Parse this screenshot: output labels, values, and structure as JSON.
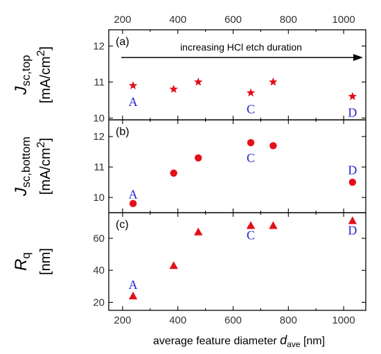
{
  "chart_data": {
    "type": "scatter",
    "x_axis": {
      "label_prefix": "average feature diameter ",
      "label_symbol": "d",
      "label_subscript": "ave",
      "label_unit": " [nm]",
      "range": [
        150,
        1080
      ],
      "ticks": [
        200,
        400,
        600,
        800,
        1000
      ],
      "tick_labels": [
        "200",
        "400",
        "600",
        "800",
        "1000"
      ],
      "top_axis_labels": true
    },
    "grid": false,
    "colors": {
      "marker": "#e3101a",
      "point_label": "#2222cc",
      "axis": "#000000"
    },
    "panels": [
      {
        "panel_label": "(a)",
        "annotation": "increasing HCl etch duration",
        "marker": "star",
        "ylabel_line1_symbol": "J",
        "ylabel_line1_sub": "sc,top",
        "ylabel_line2": "[mA/cm",
        "ylabel_line2_sup": "2",
        "ylabel_line2_end": "]",
        "ylim": [
          9.95,
          12.45
        ],
        "yticks": [
          10,
          11,
          12
        ],
        "ytick_labels": [
          "10",
          "11",
          "12"
        ],
        "points": [
          {
            "x": 238,
            "y": 10.9
          },
          {
            "x": 385,
            "y": 10.8
          },
          {
            "x": 474,
            "y": 11.0
          },
          {
            "x": 664,
            "y": 10.7
          },
          {
            "x": 745,
            "y": 11.0
          },
          {
            "x": 1032,
            "y": 10.6
          }
        ],
        "point_labels": [
          {
            "text": "A",
            "x": 238,
            "y": 10.45
          },
          {
            "text": "C",
            "x": 664,
            "y": 10.25
          },
          {
            "text": "D",
            "x": 1032,
            "y": 10.15
          }
        ]
      },
      {
        "panel_label": "(b)",
        "marker": "circle",
        "ylabel_line1_symbol": "J",
        "ylabel_line1_sub": "sc,bottom",
        "ylabel_line2": "[mA/cm",
        "ylabel_line2_sup": "2",
        "ylabel_line2_end": "]",
        "ylim": [
          9.5,
          12.55
        ],
        "yticks": [
          10,
          11,
          12
        ],
        "ytick_labels": [
          "10",
          "11",
          "12"
        ],
        "points": [
          {
            "x": 238,
            "y": 9.8
          },
          {
            "x": 385,
            "y": 10.8
          },
          {
            "x": 474,
            "y": 11.3
          },
          {
            "x": 664,
            "y": 11.8
          },
          {
            "x": 745,
            "y": 11.7
          },
          {
            "x": 1032,
            "y": 10.5
          }
        ],
        "point_labels": [
          {
            "text": "A",
            "x": 238,
            "y": 10.1
          },
          {
            "text": "C",
            "x": 664,
            "y": 11.3
          },
          {
            "text": "D",
            "x": 1032,
            "y": 10.9
          }
        ]
      },
      {
        "panel_label": "(c)",
        "marker": "triangle",
        "ylabel_line1_symbol": "R",
        "ylabel_line1_sub": "q",
        "ylabel_line2": "[nm]",
        "ylabel_line2_sup": "",
        "ylabel_line2_end": "",
        "ylim": [
          15,
          76
        ],
        "yticks": [
          20,
          40,
          60
        ],
        "ytick_labels": [
          "20",
          "40",
          "60"
        ],
        "points": [
          {
            "x": 238,
            "y": 24
          },
          {
            "x": 385,
            "y": 43
          },
          {
            "x": 474,
            "y": 64
          },
          {
            "x": 664,
            "y": 68
          },
          {
            "x": 745,
            "y": 68
          },
          {
            "x": 1032,
            "y": 71
          }
        ],
        "point_labels": [
          {
            "text": "A",
            "x": 238,
            "y": 31
          },
          {
            "text": "C",
            "x": 664,
            "y": 62
          },
          {
            "text": "D",
            "x": 1032,
            "y": 65
          }
        ]
      }
    ]
  }
}
